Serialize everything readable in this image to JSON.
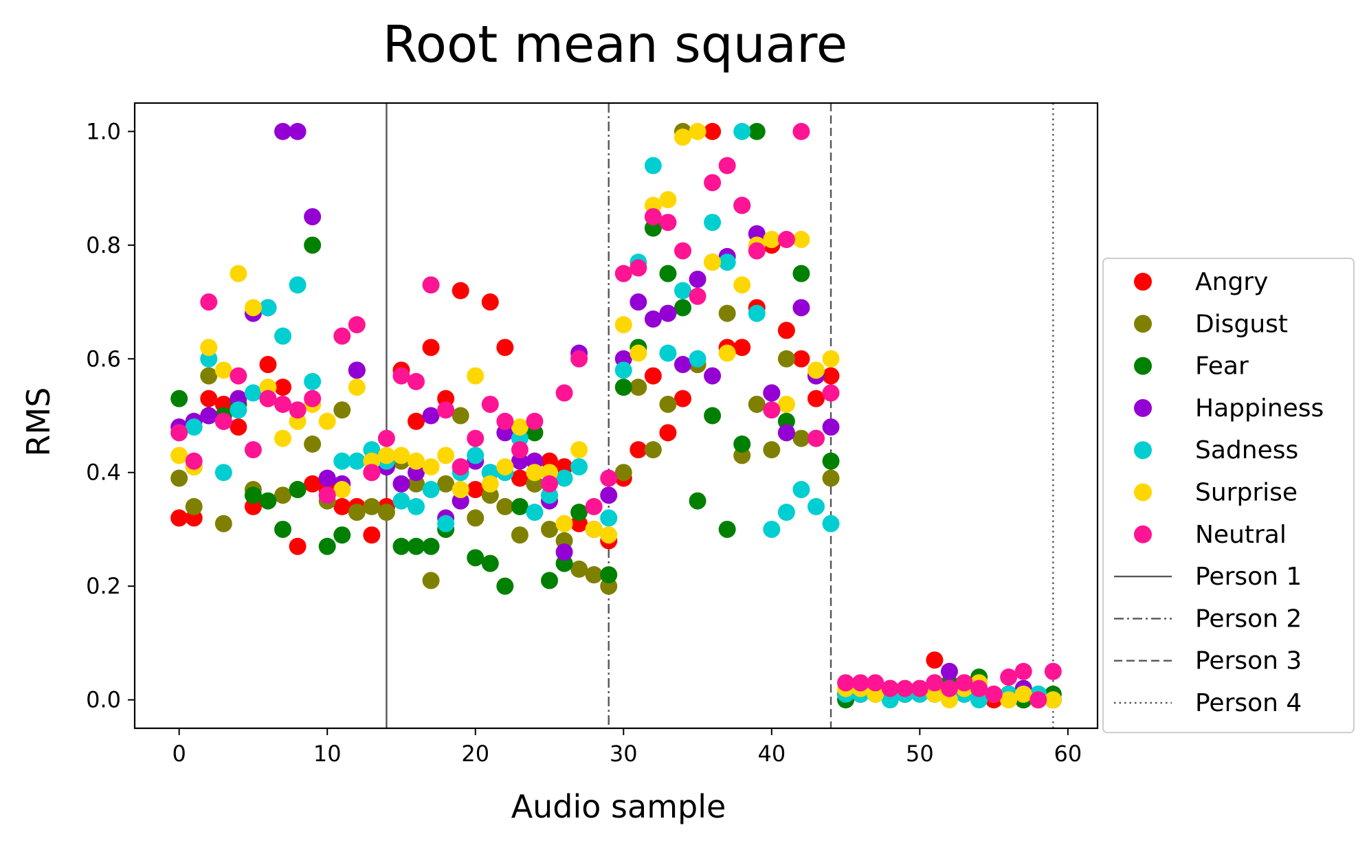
{
  "chart_data": {
    "type": "scatter",
    "title": "Root mean square",
    "xlabel": "Audio sample",
    "ylabel": "RMS",
    "xlim": [
      -3,
      62
    ],
    "ylim": [
      -0.05,
      1.05
    ],
    "xticks": [
      0,
      10,
      20,
      30,
      40,
      50,
      60
    ],
    "yticks": [
      0.0,
      0.2,
      0.4,
      0.6,
      0.8,
      1.0
    ],
    "xtick_labels": [
      "0",
      "10",
      "20",
      "30",
      "40",
      "50",
      "60"
    ],
    "ytick_labels": [
      "0.0",
      "0.2",
      "0.4",
      "0.6",
      "0.8",
      "1.0"
    ],
    "grid": false,
    "legend_position": "outside-right",
    "series": [
      {
        "name": "Angry",
        "color": "#ff0000",
        "x": [
          0,
          1,
          2,
          3,
          4,
          5,
          6,
          7,
          8,
          9,
          10,
          11,
          12,
          13,
          14,
          15,
          16,
          17,
          18,
          19,
          20,
          21,
          22,
          23,
          24,
          25,
          26,
          27,
          28,
          29,
          30,
          31,
          32,
          33,
          34,
          35,
          36,
          37,
          38,
          39,
          40,
          41,
          42,
          43,
          44,
          45,
          46,
          47,
          48,
          49,
          50,
          51,
          52,
          53,
          54,
          55,
          56,
          57,
          58,
          59
        ],
        "y": [
          0.32,
          0.32,
          0.53,
          0.52,
          0.48,
          0.34,
          0.59,
          0.55,
          0.27,
          0.38,
          0.37,
          0.34,
          0.34,
          0.29,
          0.34,
          0.58,
          0.49,
          0.62,
          0.53,
          0.72,
          0.37,
          0.7,
          0.62,
          0.39,
          0.38,
          0.42,
          0.41,
          0.31,
          0.22,
          0.28,
          0.39,
          0.44,
          0.57,
          0.47,
          0.53,
          0.59,
          1.0,
          0.62,
          0.62,
          0.69,
          0.8,
          0.65,
          0.6,
          0.53,
          0.57,
          0.01,
          0.01,
          0.02,
          0.02,
          0.01,
          0.02,
          0.07,
          0.01,
          0.02,
          0.01,
          0.0,
          0.01,
          0.0,
          0.0,
          0.0
        ]
      },
      {
        "name": "Disgust",
        "color": "#808000",
        "x": [
          0,
          1,
          2,
          3,
          4,
          5,
          6,
          7,
          8,
          9,
          10,
          11,
          12,
          13,
          14,
          15,
          16,
          17,
          18,
          19,
          20,
          21,
          22,
          23,
          24,
          25,
          26,
          27,
          28,
          29,
          30,
          31,
          32,
          33,
          34,
          35,
          36,
          37,
          38,
          39,
          40,
          41,
          42,
          43,
          44,
          45,
          46,
          47,
          48,
          49,
          50,
          51,
          52,
          53,
          54,
          55,
          56,
          57,
          58,
          59
        ],
        "y": [
          0.39,
          0.34,
          0.57,
          0.31,
          0.52,
          0.37,
          0.53,
          0.36,
          0.37,
          0.45,
          0.35,
          0.51,
          0.33,
          0.34,
          0.33,
          0.42,
          0.38,
          0.21,
          0.38,
          0.5,
          0.32,
          0.36,
          0.34,
          0.29,
          0.38,
          0.3,
          0.28,
          0.23,
          0.22,
          0.2,
          0.4,
          0.55,
          0.44,
          0.52,
          1.0,
          0.59,
          0.77,
          0.68,
          0.43,
          0.52,
          0.44,
          0.6,
          0.46,
          0.46,
          0.39,
          0.01,
          0.01,
          0.02,
          0.01,
          0.02,
          0.01,
          0.02,
          0.01,
          0.01,
          0.02,
          0.01,
          0.01,
          0.01,
          0.01,
          0.0
        ]
      },
      {
        "name": "Fear",
        "color": "#008000",
        "x": [
          0,
          1,
          2,
          3,
          4,
          5,
          6,
          7,
          8,
          9,
          10,
          11,
          12,
          13,
          14,
          15,
          16,
          17,
          18,
          19,
          20,
          21,
          22,
          23,
          24,
          25,
          26,
          27,
          28,
          29,
          30,
          31,
          32,
          33,
          34,
          35,
          36,
          37,
          38,
          39,
          40,
          41,
          42,
          43,
          44,
          45,
          46,
          47,
          48,
          49,
          50,
          51,
          52,
          53,
          54,
          55,
          56,
          57,
          58,
          59
        ],
        "y": [
          0.53,
          0.41,
          0.5,
          0.5,
          0.52,
          0.36,
          0.35,
          0.3,
          0.37,
          0.8,
          0.27,
          0.29,
          0.58,
          0.42,
          0.41,
          0.27,
          0.27,
          0.27,
          0.3,
          0.35,
          0.25,
          0.24,
          0.2,
          0.34,
          0.47,
          0.21,
          0.24,
          0.33,
          0.3,
          0.22,
          0.55,
          0.62,
          0.83,
          0.75,
          0.69,
          0.35,
          0.5,
          0.3,
          0.45,
          1.0,
          0.54,
          0.49,
          0.75,
          0.57,
          0.42,
          0.0,
          0.01,
          0.01,
          0.02,
          0.01,
          0.02,
          0.01,
          0.03,
          0.01,
          0.04,
          0.01,
          0.01,
          0.0,
          0.01,
          0.01
        ]
      },
      {
        "name": "Happiness",
        "color": "#9400d3",
        "x": [
          0,
          1,
          2,
          3,
          4,
          5,
          6,
          7,
          8,
          9,
          10,
          11,
          12,
          13,
          14,
          15,
          16,
          17,
          18,
          19,
          20,
          21,
          22,
          23,
          24,
          25,
          26,
          27,
          28,
          29,
          30,
          31,
          32,
          33,
          34,
          35,
          36,
          37,
          38,
          39,
          40,
          41,
          42,
          43,
          44,
          45,
          46,
          47,
          48,
          49,
          50,
          51,
          52,
          53,
          54,
          55,
          56,
          57,
          58,
          59
        ],
        "y": [
          0.48,
          0.49,
          0.5,
          0.49,
          0.53,
          0.68,
          0.69,
          1.0,
          1.0,
          0.85,
          0.39,
          0.38,
          0.58,
          0.4,
          0.41,
          0.38,
          0.4,
          0.5,
          0.32,
          0.35,
          0.42,
          0.4,
          0.47,
          0.42,
          0.42,
          0.35,
          0.26,
          0.61,
          0.3,
          0.36,
          0.6,
          0.7,
          0.67,
          0.68,
          0.59,
          0.74,
          0.57,
          0.78,
          0.87,
          0.82,
          0.54,
          0.47,
          0.69,
          0.57,
          0.48,
          0.01,
          0.02,
          0.02,
          0.02,
          0.01,
          0.02,
          0.03,
          0.05,
          0.03,
          0.02,
          0.01,
          0.01,
          0.02,
          0.0,
          0.0
        ]
      },
      {
        "name": "Sadness",
        "color": "#00ced1",
        "x": [
          0,
          1,
          2,
          3,
          4,
          5,
          6,
          7,
          8,
          9,
          10,
          11,
          12,
          13,
          14,
          15,
          16,
          17,
          18,
          19,
          20,
          21,
          22,
          23,
          24,
          25,
          26,
          27,
          28,
          29,
          30,
          31,
          32,
          33,
          34,
          35,
          36,
          37,
          38,
          39,
          40,
          41,
          42,
          43,
          44,
          45,
          46,
          47,
          48,
          49,
          50,
          51,
          52,
          53,
          54,
          55,
          56,
          57,
          58,
          59
        ],
        "y": [
          0.47,
          0.48,
          0.6,
          0.4,
          0.51,
          0.54,
          0.69,
          0.64,
          0.73,
          0.56,
          0.36,
          0.42,
          0.42,
          0.44,
          0.42,
          0.35,
          0.34,
          0.37,
          0.31,
          0.4,
          0.43,
          0.4,
          0.4,
          0.46,
          0.33,
          0.36,
          0.39,
          0.41,
          0.3,
          0.32,
          0.58,
          0.77,
          0.94,
          0.61,
          0.72,
          0.6,
          0.84,
          0.77,
          1.0,
          0.68,
          0.3,
          0.33,
          0.37,
          0.34,
          0.31,
          0.01,
          0.01,
          0.01,
          0.0,
          0.01,
          0.01,
          0.02,
          0.02,
          0.01,
          0.0,
          0.01,
          0.01,
          0.01,
          0.01,
          0.0
        ]
      },
      {
        "name": "Surprise",
        "color": "#ffd700",
        "x": [
          0,
          1,
          2,
          3,
          4,
          5,
          6,
          7,
          8,
          9,
          10,
          11,
          12,
          13,
          14,
          15,
          16,
          17,
          18,
          19,
          20,
          21,
          22,
          23,
          24,
          25,
          26,
          27,
          28,
          29,
          30,
          31,
          32,
          33,
          34,
          35,
          36,
          37,
          38,
          39,
          40,
          41,
          42,
          43,
          44,
          45,
          46,
          47,
          48,
          49,
          50,
          51,
          52,
          53,
          54,
          55,
          56,
          57,
          58,
          59
        ],
        "y": [
          0.43,
          0.41,
          0.62,
          0.58,
          0.75,
          0.69,
          0.55,
          0.46,
          0.49,
          0.52,
          0.49,
          0.37,
          0.55,
          0.42,
          0.43,
          0.43,
          0.42,
          0.41,
          0.43,
          0.37,
          0.57,
          0.38,
          0.41,
          0.48,
          0.4,
          0.4,
          0.31,
          0.44,
          0.3,
          0.29,
          0.66,
          0.61,
          0.87,
          0.88,
          0.99,
          1.0,
          0.77,
          0.61,
          0.73,
          0.8,
          0.81,
          0.52,
          0.81,
          0.58,
          0.6,
          0.02,
          0.02,
          0.01,
          0.02,
          0.02,
          0.02,
          0.01,
          0.0,
          0.02,
          0.03,
          0.01,
          0.0,
          0.01,
          0.0,
          0.0
        ]
      },
      {
        "name": "Neutral",
        "color": "#ff1493",
        "x": [
          0,
          1,
          2,
          3,
          4,
          5,
          6,
          7,
          8,
          9,
          10,
          11,
          12,
          13,
          14,
          15,
          16,
          17,
          18,
          19,
          20,
          21,
          22,
          23,
          24,
          25,
          26,
          27,
          28,
          29,
          30,
          31,
          32,
          33,
          34,
          35,
          36,
          37,
          38,
          39,
          40,
          41,
          42,
          43,
          44,
          45,
          46,
          47,
          48,
          49,
          50,
          51,
          52,
          53,
          54,
          55,
          56,
          57,
          58,
          59
        ],
        "y": [
          0.47,
          0.42,
          0.7,
          0.49,
          0.57,
          0.44,
          0.53,
          0.52,
          0.51,
          0.53,
          0.36,
          0.64,
          0.66,
          0.4,
          0.46,
          0.57,
          0.56,
          0.73,
          0.51,
          0.41,
          0.46,
          0.52,
          0.49,
          0.44,
          0.49,
          0.38,
          0.54,
          0.6,
          0.34,
          0.39,
          0.75,
          0.76,
          0.85,
          0.84,
          0.79,
          0.71,
          0.91,
          0.94,
          0.87,
          0.79,
          0.51,
          0.81,
          1.0,
          0.46,
          0.54,
          0.03,
          0.03,
          0.03,
          0.02,
          0.02,
          0.02,
          0.03,
          0.02,
          0.03,
          0.02,
          0.01,
          0.04,
          0.05,
          0.0,
          0.05
        ]
      }
    ],
    "vlines": [
      {
        "name": "Person 1",
        "x": 14,
        "style": "solid",
        "color": "#555555"
      },
      {
        "name": "Person 2",
        "x": 29,
        "style": "dashdot",
        "color": "#555555"
      },
      {
        "name": "Person 3",
        "x": 44,
        "style": "dashed",
        "color": "#555555"
      },
      {
        "name": "Person 4",
        "x": 59,
        "style": "dotted",
        "color": "#555555"
      }
    ]
  }
}
